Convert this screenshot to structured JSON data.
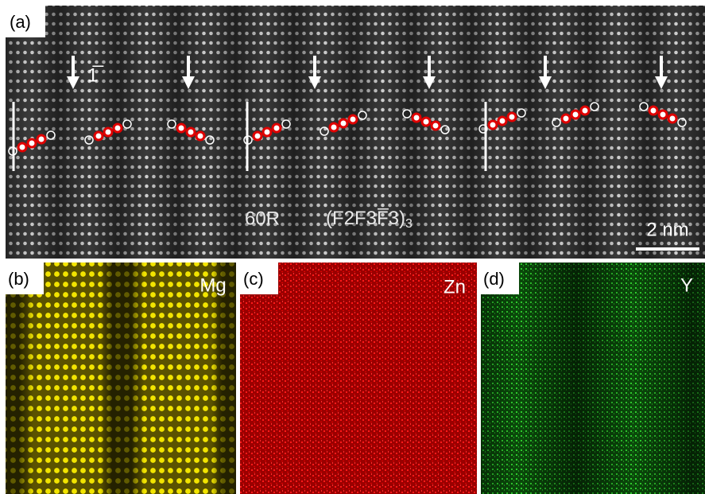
{
  "panels": [
    {
      "label": "(a)",
      "annotation": "1̅",
      "structure": "60R",
      "formula": "(F2F3F̅3)",
      "formula_subscript": "3",
      "scale_bar": "2 nm"
    },
    {
      "label": "(b)",
      "element": "Mg"
    },
    {
      "label": "(c)",
      "element": "Zn"
    },
    {
      "label": "(d)",
      "element": "Y"
    }
  ]
}
